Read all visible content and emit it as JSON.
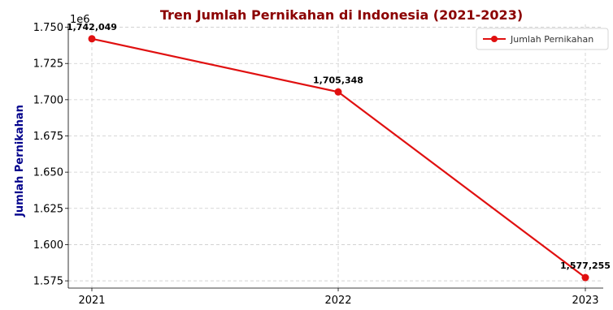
{
  "chart_data": {
    "type": "line",
    "title": "Tren Jumlah Pernikahan di Indonesia (2021-2023)",
    "xlabel": "",
    "ylabel": "Jumlah Pernikahan",
    "y_offset_label": "1e6",
    "categories": [
      "2021",
      "2022",
      "2023"
    ],
    "series": [
      {
        "name": "Jumlah Pernikahan",
        "values": [
          1742049,
          1705348,
          1577255
        ],
        "labels": [
          "1,742,049",
          "1,705,348",
          "1,577,255"
        ],
        "color": "#e01010"
      }
    ],
    "yticks": [
      "1.575",
      "1.600",
      "1.625",
      "1.650",
      "1.675",
      "1.700",
      "1.725",
      "1.750"
    ],
    "ytick_values": [
      1575000,
      1600000,
      1625000,
      1650000,
      1675000,
      1700000,
      1725000,
      1750000
    ],
    "ylim": [
      1570000,
      1752000
    ],
    "grid": true,
    "legend_position": "top-right",
    "title_color": "#8b0000",
    "ylabel_color": "#00008b"
  }
}
